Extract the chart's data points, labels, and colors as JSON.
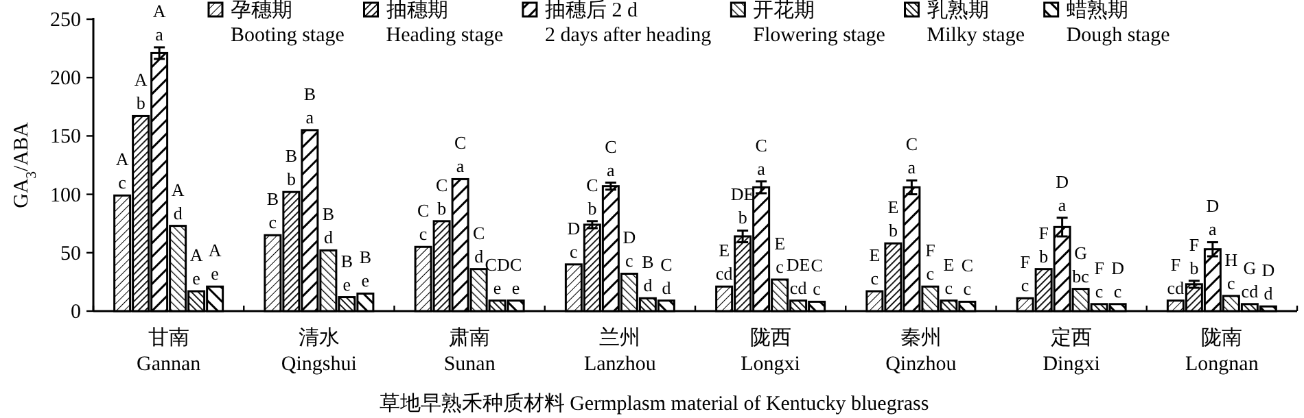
{
  "chart_data": {
    "type": "bar",
    "ylabel": "GA$_{3}$/ABA",
    "xlabel": "草地早熟禾种质材料 Germplasm material of Kentucky bluegrass",
    "categories": [
      "甘南\nGannan",
      "清水\nQingshui",
      "肃南\nSunan",
      "兰州\nLanzhou",
      "陇西\nLongxi",
      "秦州\nQinzhou",
      "定西\nDingxi",
      "陇南\nLongnan"
    ],
    "series": [
      {
        "name": "孕穗期\nBooting stage",
        "color": "#000000",
        "values": [
          99,
          65,
          55,
          40,
          21,
          17,
          11,
          9
        ],
        "errors": [
          null,
          null,
          null,
          null,
          null,
          null,
          null,
          null
        ],
        "value_labels": [
          "A\nc",
          "B\nc",
          "C\nc",
          "D\nc",
          "E\ncd",
          "E\nc",
          "F\nc",
          "F\ncd"
        ]
      },
      {
        "name": "抽穗期\nHeading stage",
        "color": "#000000",
        "values": [
          167,
          102,
          77,
          74,
          64,
          58,
          36,
          23
        ],
        "errors": [
          null,
          null,
          null,
          3,
          5,
          null,
          null,
          3
        ],
        "value_labels": [
          "A\nb",
          "B\nb",
          "C\nb",
          "C\nb",
          "DE\nb",
          "E\nb",
          "F\nb",
          "F\nb"
        ]
      },
      {
        "name": "抽穗后 2 d\n2 days after heading",
        "color": "#000000",
        "values": [
          221,
          155,
          113,
          107,
          106,
          106,
          72,
          53
        ],
        "errors": [
          5,
          null,
          null,
          3,
          5,
          6,
          8,
          6
        ],
        "value_labels": [
          "A\na",
          "B\na",
          "C\na",
          "C\na",
          "C\na",
          "C\na",
          "D\na",
          "D\na"
        ]
      },
      {
        "name": "开花期\nFlowering stage",
        "color": "#000000",
        "values": [
          73,
          52,
          36,
          32,
          27,
          21,
          19,
          13
        ],
        "errors": [
          null,
          null,
          null,
          null,
          null,
          null,
          null,
          null
        ],
        "value_labels": [
          "A\nd",
          "B\nd",
          "C\nd",
          "D\nc",
          "E\nc",
          "F\nc",
          "G\nbc",
          "H\nc"
        ]
      },
      {
        "name": "乳熟期\nMilky stage",
        "color": "#000000",
        "values": [
          17,
          12,
          9,
          11,
          9,
          9,
          6,
          6
        ],
        "errors": [
          null,
          null,
          null,
          null,
          null,
          null,
          null,
          null
        ],
        "value_labels": [
          "A\ne",
          "B\ne",
          "CD\ne",
          "B\nd",
          "DE\ncd",
          "E\nc",
          "F\nc",
          "G\ncd"
        ]
      },
      {
        "name": "蜡熟期\nDough stage",
        "color": "#000000",
        "values": [
          21,
          15,
          9,
          9,
          8,
          8,
          6,
          4
        ],
        "errors": [
          null,
          null,
          null,
          null,
          null,
          null,
          null,
          null
        ],
        "value_labels": [
          "A\ne",
          "B\ne",
          "C\ne",
          "C\nd",
          "C\nc",
          "C\nc",
          "D\nc",
          "D\nd"
        ]
      }
    ],
    "ylim": [
      0,
      250
    ],
    "yticks": [
      0,
      50,
      100,
      150,
      200,
      250
    ],
    "legend": "top"
  }
}
